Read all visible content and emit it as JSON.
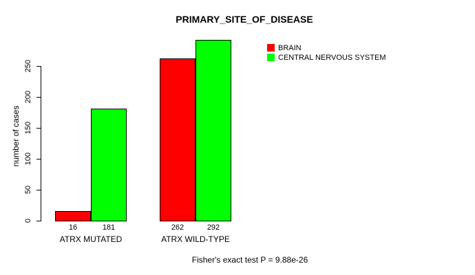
{
  "chart_data": {
    "type": "bar",
    "title": "PRIMARY_SITE_OF_DISEASE",
    "ylabel": "number of cases",
    "xlabel": "",
    "categories": [
      "ATRX MUTATED",
      "ATRX WILD-TYPE"
    ],
    "series": [
      {
        "name": "BRAIN",
        "color": "#FF0000",
        "values": [
          16,
          262
        ]
      },
      {
        "name": "CENTRAL NERVOUS SYSTEM",
        "color": "#00FF00",
        "values": [
          181,
          292
        ]
      }
    ],
    "show_value_labels": true,
    "value_labels": [
      [
        16,
        181
      ],
      [
        262,
        292
      ]
    ],
    "yticks": [
      0,
      50,
      100,
      150,
      200,
      250
    ],
    "ylim": [
      0,
      250
    ],
    "grid": false,
    "legend_position": "top-right",
    "caption": "Fisher's exact test P = 9.88e-26",
    "bar_border_color": "#000000",
    "axis_color": "#000000",
    "background": "#FFFFFF"
  }
}
